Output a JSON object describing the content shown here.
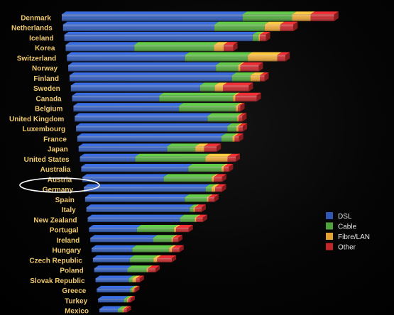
{
  "chart_data": {
    "type": "bar",
    "orientation": "horizontal",
    "stacked": true,
    "style": "3d-perspective",
    "legend_position": "bottom-right",
    "highlighted_category": "Australia",
    "categories": [
      "Denmark",
      "Netherlands",
      "Iceland",
      "Korea",
      "Switzerland",
      "Norway",
      "Finland",
      "Sweden",
      "Canada",
      "Belgium",
      "United Kingdom",
      "Luxembourg",
      "France",
      "Japan",
      "United States",
      "Australia",
      "Austria",
      "Germany",
      "Spain",
      "Italy",
      "New Zealand",
      "Portugal",
      "Ireland",
      "Hungary",
      "Czech Republic",
      "Poland",
      "Slovak Republic",
      "Greece",
      "Turkey",
      "Mexico"
    ],
    "series": [
      {
        "name": "DSL",
        "color": "#2f58b5",
        "values": [
          24.5,
          20.5,
          25.5,
          9.3,
          16.0,
          20.0,
          22.0,
          17.5,
          11.8,
          14.3,
          18.0,
          20.5,
          19.5,
          12.0,
          7.5,
          14.5,
          11.0,
          16.5,
          13.5,
          14.0,
          12.5,
          6.5,
          8.5,
          5.5,
          5.0,
          4.5,
          4.5,
          4.5,
          3.5,
          2.5
        ]
      },
      {
        "name": "Cable",
        "color": "#4fa33a",
        "values": [
          6.7,
          6.8,
          0.8,
          10.8,
          8.5,
          3.0,
          2.5,
          2.0,
          10.0,
          7.7,
          4.0,
          1.2,
          1.5,
          3.8,
          9.5,
          4.5,
          6.5,
          0.8,
          3.0,
          0.5,
          2.0,
          5.0,
          2.5,
          5.0,
          3.2,
          2.6,
          0.5,
          0.3,
          0.4,
          0.6
        ]
      },
      {
        "name": "Fibre/LAN",
        "color": "#e6a233",
        "values": [
          2.5,
          2.1,
          0.2,
          1.3,
          4.0,
          0.3,
          1.3,
          1.1,
          0.3,
          0.3,
          0.2,
          0.3,
          0.3,
          1.2,
          3.0,
          0.3,
          0.3,
          0.5,
          0.2,
          0.2,
          0.2,
          0.3,
          0.2,
          0.4,
          0.5,
          0.2,
          0.5,
          0.2,
          0.2,
          0.2
        ]
      },
      {
        "name": "Other",
        "color": "#c2262a",
        "values": [
          3.2,
          1.8,
          0.8,
          1.3,
          1.1,
          2.5,
          0.6,
          3.5,
          2.9,
          0.3,
          0.5,
          0.6,
          0.6,
          1.7,
          1.1,
          0.7,
          1.1,
          0.9,
          0.8,
          0.9,
          0.9,
          1.7,
          0.7,
          1.0,
          2.0,
          1.0,
          0.5,
          0.2,
          0.3,
          0.4
        ]
      }
    ],
    "title": "",
    "xlabel": "",
    "ylabel": "",
    "grid": false
  },
  "legend": {
    "items": [
      {
        "label": "DSL",
        "color": "#2f58b5"
      },
      {
        "label": "Cable",
        "color": "#4fa33a"
      },
      {
        "label": "Fibre/LAN",
        "color": "#e6a233"
      },
      {
        "label": "Other",
        "color": "#c2262a"
      }
    ]
  }
}
